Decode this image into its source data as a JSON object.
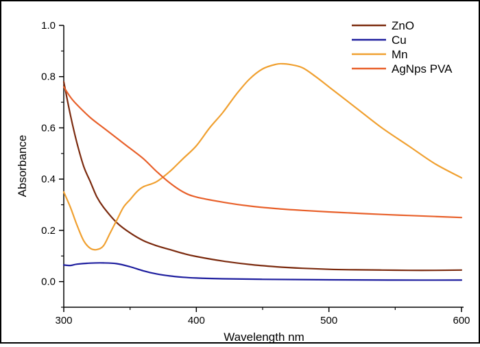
{
  "chart_data": {
    "type": "line",
    "title": "",
    "xlabel": "Wavelength nm",
    "ylabel": "Absorbance",
    "xlim": [
      300,
      600
    ],
    "ylim": [
      -0.1,
      1.0
    ],
    "xticks": [
      300,
      400,
      500,
      600
    ],
    "xtick_labels": [
      "300",
      "400",
      "500",
      "600"
    ],
    "yticks": [
      0.0,
      0.2,
      0.4,
      0.6,
      0.8,
      1.0
    ],
    "ytick_labels": [
      "0.0",
      "0.2",
      "0.4",
      "0.6",
      "0.8",
      "1.0"
    ],
    "grid": false,
    "legend_position": "top-right",
    "series": [
      {
        "name": "ZnO",
        "color": "#7b2a0e",
        "x": [
          300,
          305,
          310,
          315,
          320,
          325,
          330,
          340,
          350,
          360,
          370,
          380,
          390,
          400,
          420,
          440,
          460,
          480,
          500,
          520,
          540,
          560,
          580,
          600
        ],
        "y": [
          0.78,
          0.65,
          0.54,
          0.45,
          0.39,
          0.33,
          0.29,
          0.23,
          0.19,
          0.16,
          0.14,
          0.125,
          0.11,
          0.098,
          0.08,
          0.067,
          0.058,
          0.052,
          0.048,
          0.046,
          0.045,
          0.044,
          0.044,
          0.045
        ]
      },
      {
        "name": "Cu",
        "color": "#1d1d9e",
        "x": [
          300,
          305,
          310,
          320,
          330,
          340,
          350,
          360,
          370,
          380,
          390,
          400,
          420,
          450,
          500,
          550,
          600
        ],
        "y": [
          0.065,
          0.063,
          0.068,
          0.072,
          0.073,
          0.07,
          0.058,
          0.042,
          0.03,
          0.022,
          0.017,
          0.014,
          0.011,
          0.009,
          0.007,
          0.006,
          0.006
        ]
      },
      {
        "name": "Mn",
        "color": "#f0a030",
        "x": [
          300,
          305,
          310,
          315,
          320,
          325,
          330,
          335,
          340,
          345,
          350,
          355,
          360,
          370,
          380,
          390,
          400,
          410,
          420,
          430,
          440,
          450,
          460,
          465,
          470,
          480,
          490,
          500,
          520,
          540,
          560,
          580,
          600
        ],
        "y": [
          0.35,
          0.29,
          0.22,
          0.16,
          0.13,
          0.125,
          0.14,
          0.19,
          0.24,
          0.29,
          0.32,
          0.35,
          0.37,
          0.39,
          0.43,
          0.48,
          0.53,
          0.6,
          0.66,
          0.73,
          0.79,
          0.83,
          0.848,
          0.85,
          0.848,
          0.835,
          0.8,
          0.76,
          0.68,
          0.6,
          0.53,
          0.46,
          0.405
        ]
      },
      {
        "name": "AgNps PVA",
        "color": "#e8602a",
        "x": [
          300,
          305,
          310,
          320,
          330,
          340,
          350,
          360,
          370,
          380,
          390,
          400,
          420,
          440,
          460,
          480,
          500,
          520,
          540,
          560,
          580,
          600
        ],
        "y": [
          0.76,
          0.72,
          0.69,
          0.64,
          0.6,
          0.56,
          0.52,
          0.48,
          0.43,
          0.385,
          0.35,
          0.33,
          0.31,
          0.295,
          0.285,
          0.278,
          0.272,
          0.267,
          0.262,
          0.258,
          0.254,
          0.25
        ]
      }
    ]
  }
}
